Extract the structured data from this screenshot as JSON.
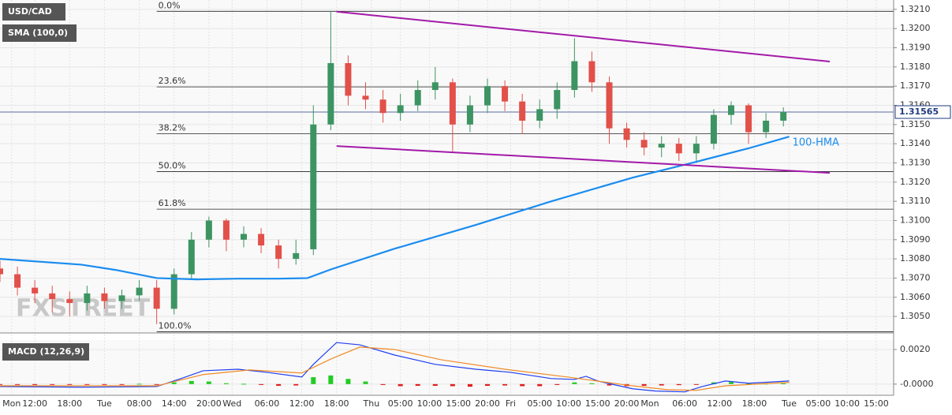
{
  "chart_data": [
    {
      "type": "candlestick",
      "title": "USD/CAD",
      "indicator": "SMA (100,0)",
      "watermark": "FXSTREET",
      "xlim": [
        0,
        154
      ],
      "xticks": [
        {
          "value": 2,
          "label": "Mon"
        },
        {
          "value": 6,
          "label": "12:00"
        },
        {
          "value": 12,
          "label": "18:00"
        },
        {
          "value": 18,
          "label": "Tue"
        },
        {
          "value": 24,
          "label": "08:00"
        },
        {
          "value": 30,
          "label": "14:00"
        },
        {
          "value": 36,
          "label": "20:00"
        },
        {
          "value": 40,
          "label": "Wed"
        },
        {
          "value": 46,
          "label": "06:00"
        },
        {
          "value": 52,
          "label": "12:00"
        },
        {
          "value": 58,
          "label": "18:00"
        },
        {
          "value": 64,
          "label": "Thu"
        },
        {
          "value": 69,
          "label": "05:00"
        },
        {
          "value": 74,
          "label": "10:00"
        },
        {
          "value": 79,
          "label": "15:00"
        },
        {
          "value": 84,
          "label": "20:00"
        },
        {
          "value": 88,
          "label": "Fri"
        },
        {
          "value": 93,
          "label": "05:00"
        },
        {
          "value": 98,
          "label": "10:00"
        },
        {
          "value": 103,
          "label": "15:00"
        },
        {
          "value": 108,
          "label": "20:00"
        },
        {
          "value": 112,
          "label": "Mon"
        },
        {
          "value": 118,
          "label": "06:00"
        },
        {
          "value": 124,
          "label": "12:00"
        },
        {
          "value": 130,
          "label": "18:00"
        },
        {
          "value": 136,
          "label": "Tue"
        },
        {
          "value": 141,
          "label": "05:00"
        },
        {
          "value": 146,
          "label": "10:00"
        },
        {
          "value": 151,
          "label": "15:00"
        }
      ],
      "ylim": [
        1.3041,
        1.3212
      ],
      "yticks": [
        {
          "value": 1.305,
          "label": "1.3050"
        },
        {
          "value": 1.306,
          "label": "1.3060"
        },
        {
          "value": 1.307,
          "label": "1.3070"
        },
        {
          "value": 1.308,
          "label": "1.3080"
        },
        {
          "value": 1.309,
          "label": "1.3090"
        },
        {
          "value": 1.31,
          "label": "1.3100"
        },
        {
          "value": 1.311,
          "label": "1.3110"
        },
        {
          "value": 1.312,
          "label": "1.3120"
        },
        {
          "value": 1.313,
          "label": "1.3130"
        },
        {
          "value": 1.314,
          "label": "1.3140"
        },
        {
          "value": 1.315,
          "label": "1.3150"
        },
        {
          "value": 1.316,
          "label": "1.3160"
        },
        {
          "value": 1.317,
          "label": "1.3170"
        },
        {
          "value": 1.318,
          "label": "1.3180"
        },
        {
          "value": 1.319,
          "label": "1.3190"
        },
        {
          "value": 1.32,
          "label": "1.3200"
        },
        {
          "value": 1.321,
          "label": "1.3210"
        }
      ],
      "x": [
        0,
        3,
        6,
        9,
        12,
        15,
        18,
        21,
        24,
        27,
        30,
        33,
        36,
        39,
        42,
        45,
        48,
        51,
        54,
        57,
        60,
        63,
        66,
        69,
        72,
        75,
        78,
        81,
        84,
        87,
        90,
        93,
        96,
        99,
        102,
        105,
        108,
        111,
        114,
        117,
        120,
        123,
        126,
        129,
        132,
        135
      ],
      "open": [
        1.3075,
        1.3072,
        1.3065,
        1.3062,
        1.3059,
        1.3057,
        1.3062,
        1.3058,
        1.3061,
        1.3065,
        1.3054,
        1.3072,
        1.309,
        1.31,
        1.309,
        1.3093,
        1.3087,
        1.308,
        1.3085,
        1.315,
        1.3182,
        1.3165,
        1.3163,
        1.3156,
        1.316,
        1.3168,
        1.3172,
        1.315,
        1.316,
        1.317,
        1.3162,
        1.3152,
        1.3158,
        1.3168,
        1.3183,
        1.3172,
        1.3148,
        1.3142,
        1.3138,
        1.314,
        1.3135,
        1.314,
        1.3155,
        1.316,
        1.3146,
        1.3152
      ],
      "high": [
        1.3079,
        1.3076,
        1.3069,
        1.3066,
        1.3063,
        1.3066,
        1.3065,
        1.3064,
        1.3069,
        1.3069,
        1.3075,
        1.3094,
        1.3102,
        1.3101,
        1.3097,
        1.3096,
        1.309,
        1.309,
        1.316,
        1.3209,
        1.3186,
        1.3172,
        1.3168,
        1.3166,
        1.3173,
        1.318,
        1.3174,
        1.3165,
        1.3174,
        1.3173,
        1.3166,
        1.3163,
        1.3172,
        1.3195,
        1.3188,
        1.3175,
        1.3151,
        1.3146,
        1.3144,
        1.3143,
        1.3144,
        1.3158,
        1.3162,
        1.3161,
        1.3156,
        1.3159
      ],
      "low": [
        1.3068,
        1.3061,
        1.3057,
        1.3052,
        1.305,
        1.3053,
        1.3054,
        1.3054,
        1.3058,
        1.3046,
        1.3051,
        1.3069,
        1.3086,
        1.3084,
        1.3086,
        1.3083,
        1.3075,
        1.3077,
        1.3082,
        1.3147,
        1.316,
        1.3158,
        1.3151,
        1.3152,
        1.3157,
        1.3163,
        1.3136,
        1.3146,
        1.3156,
        1.3157,
        1.3145,
        1.3148,
        1.3153,
        1.3164,
        1.3167,
        1.314,
        1.3138,
        1.3134,
        1.3133,
        1.3131,
        1.313,
        1.3137,
        1.315,
        1.314,
        1.3143,
        1.3149
      ],
      "close": [
        1.3072,
        1.3065,
        1.3062,
        1.3059,
        1.3057,
        1.3062,
        1.3058,
        1.3061,
        1.3065,
        1.3054,
        1.3072,
        1.309,
        1.31,
        1.309,
        1.3093,
        1.3087,
        1.308,
        1.3083,
        1.315,
        1.3182,
        1.3165,
        1.3163,
        1.3156,
        1.316,
        1.3168,
        1.3172,
        1.315,
        1.316,
        1.317,
        1.3162,
        1.3152,
        1.3158,
        1.3168,
        1.3183,
        1.3172,
        1.3148,
        1.3142,
        1.3138,
        1.314,
        1.3135,
        1.314,
        1.3155,
        1.316,
        1.3146,
        1.3152,
        1.31565
      ],
      "up_color": "#3d9463",
      "down_color": "#e2504a",
      "last_price": 1.31565,
      "hma": {
        "name": "100-HMA",
        "color": "#1a8cf0",
        "x": [
          0,
          14,
          20,
          27,
          34,
          41,
          48,
          53,
          57,
          68,
          82,
          95,
          109,
          120,
          129,
          136
        ],
        "values": [
          1.308,
          1.3077,
          1.30742,
          1.307,
          1.30693,
          1.30697,
          1.30697,
          1.307,
          1.30745,
          1.30853,
          1.30977,
          1.311,
          1.31223,
          1.31306,
          1.31376,
          1.31437
        ]
      },
      "trendlines": [
        {
          "color": "#a31aa8",
          "x": [
            58,
            143
          ],
          "values": [
            1.32088,
            1.31828
          ]
        },
        {
          "color": "#a31aa8",
          "x": [
            58,
            143
          ],
          "values": [
            1.31388,
            1.31248
          ]
        }
      ],
      "fib_levels": [
        {
          "label": "0.0%",
          "value": 1.3209
        },
        {
          "label": "23.6%",
          "value": 1.31696
        },
        {
          "label": "38.2%",
          "value": 1.31452
        },
        {
          "label": "50.0%",
          "value": 1.31255
        },
        {
          "label": "61.8%",
          "value": 1.31059
        },
        {
          "label": "100.0%",
          "value": 1.3042
        }
      ],
      "fib_start": 27
    },
    {
      "type": "macd",
      "title": "MACD (12,26,9)",
      "ylim": [
        -0.0006,
        0.0025
      ],
      "yticks": [
        {
          "value": 0,
          "label": "-0.0000"
        },
        {
          "value": 0.002,
          "label": "0.0020"
        }
      ],
      "x": [
        0,
        3,
        6,
        9,
        12,
        15,
        18,
        21,
        24,
        27,
        30,
        33,
        36,
        39,
        42,
        45,
        48,
        51,
        54,
        57,
        60,
        63,
        66,
        69,
        72,
        75,
        78,
        81,
        84,
        87,
        90,
        93,
        96,
        99,
        102,
        105,
        108,
        111,
        114,
        117,
        120,
        123,
        126,
        129,
        132,
        135
      ],
      "histogram": [
        -3e-05,
        -4e-05,
        -5e-05,
        -4e-05,
        -4e-05,
        -2e-05,
        -3e-05,
        -2e-05,
        2e-05,
        -4e-05,
        0.0001,
        0.00018,
        0.00015,
        5e-05,
        2e-05,
        -5e-05,
        -0.0001,
        -8e-05,
        0.0004,
        0.0005,
        0.0003,
        0.00015,
        -5e-05,
        -0.00012,
        -0.0001,
        -0.0001,
        -0.00012,
        -0.00015,
        -0.0001,
        -8e-05,
        -0.00012,
        -0.00012,
        -5e-05,
        0.0001,
        5e-05,
        -8e-05,
        -0.00012,
        -0.0001,
        -8e-05,
        -6e-05,
        -2e-05,
        0.0001,
        0.00012,
        3e-05,
        3e-05,
        4e-05
      ],
      "up_color": "#22cc22",
      "down_color": "#e01e1e",
      "series": [
        {
          "color": "#1f3ff0",
          "x": [
            0,
            14,
            27,
            31,
            35,
            41,
            46,
            52,
            54,
            58,
            62,
            68,
            75,
            82,
            88,
            95,
            99,
            101,
            103,
            109,
            113,
            118,
            121,
            125,
            129,
            136
          ],
          "values": [
            -0.00014,
            -0.00018,
            -0.00014,
            0.0003,
            0.00077,
            0.00086,
            0.00068,
            0.00041,
            0.00114,
            0.0024,
            0.00227,
            0.00168,
            0.00114,
            0.00086,
            0.00068,
            0.00032,
            0.00027,
            0.00045,
            0.00018,
            -0.00027,
            -0.0004,
            -0.00045,
            -0.00014,
            0.00018,
            5e-05,
            0.00018
          ]
        },
        {
          "color": "#f08a24",
          "x": [
            0,
            27,
            35,
            43,
            52,
            57,
            62,
            68,
            76,
            87,
            98,
            109,
            115,
            120,
            125,
            136
          ],
          "values": [
            -0.0001,
            -0.0001,
            0.00055,
            0.00082,
            0.00064,
            0.00145,
            0.00214,
            0.002,
            0.00141,
            0.00086,
            0.0004,
            -0.0001,
            -0.00032,
            -0.00036,
            -0.0001,
            0.0001
          ]
        }
      ]
    }
  ]
}
